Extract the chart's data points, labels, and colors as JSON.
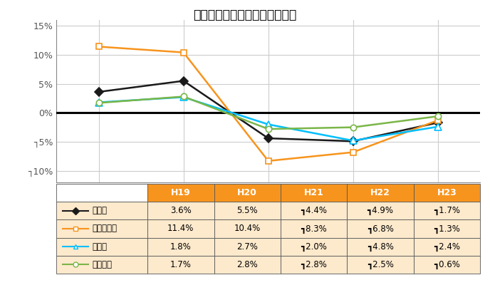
{
  "title": "圏域別住宅地の年間変動率推移",
  "x_labels": [
    "H19",
    "H20",
    "H21",
    "H22",
    "H23"
  ],
  "series": [
    {
      "name": "東京圈",
      "values": [
        3.6,
        5.5,
        -4.4,
        -4.9,
        -1.7
      ],
      "color": "#1a1a1a",
      "marker": "D",
      "marker_size": 6,
      "linewidth": 1.8,
      "markerfacecolor": "#1a1a1a"
    },
    {
      "name": "東京都区部",
      "values": [
        11.4,
        10.4,
        -8.3,
        -6.8,
        -1.3
      ],
      "color": "#F7941D",
      "marker": "s",
      "marker_size": 6,
      "linewidth": 1.8,
      "markerfacecolor": "white"
    },
    {
      "name": "大阪圈",
      "values": [
        1.8,
        2.7,
        -2.0,
        -4.8,
        -2.4
      ],
      "color": "#00BFFF",
      "marker": "^",
      "marker_size": 7,
      "linewidth": 1.8,
      "markerfacecolor": "white"
    },
    {
      "name": "名古屋圈",
      "values": [
        1.7,
        2.8,
        -2.8,
        -2.5,
        -0.6
      ],
      "color": "#7AB648",
      "marker": "o",
      "marker_size": 6,
      "linewidth": 1.8,
      "markerfacecolor": "white"
    }
  ],
  "ylim": [
    -12,
    16
  ],
  "yticks": [
    -10,
    -5,
    0,
    5,
    10,
    15
  ],
  "ytick_labels": [
    "┐10%",
    "┐5%",
    "0%",
    "5%",
    "10%",
    "15%"
  ],
  "table_header_bg": "#F7941D",
  "table_row_bg": "#FDE9CC",
  "table_border_color": "#555555",
  "grid_color": "#CCCCCC",
  "zero_line_color": "#000000",
  "table_data": [
    [
      "3.6%",
      "5.5%",
      "┓4.4%",
      "┓4.9%",
      "┓1.7%"
    ],
    [
      "11.4%",
      "10.4%",
      "┓8.3%",
      "┓6.8%",
      "┓1.3%"
    ],
    [
      "1.8%",
      "2.7%",
      "┓2.0%",
      "┓4.8%",
      "┓2.4%"
    ],
    [
      "1.7%",
      "2.8%",
      "┓2.8%",
      "┓2.5%",
      "┓0.6%"
    ]
  ]
}
